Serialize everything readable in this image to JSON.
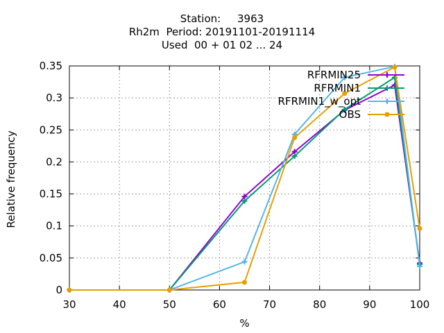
{
  "chart_data": {
    "type": "line",
    "title_lines": [
      "Station:     3963",
      "Rh2m  Period: 20191101-20191114",
      "Used  00 + 01 02 ... 24"
    ],
    "xlabel": "%",
    "ylabel": "Relative frequency",
    "xlim": [
      30,
      100
    ],
    "ylim": [
      0,
      0.35
    ],
    "xticks": [
      30,
      40,
      50,
      60,
      70,
      80,
      90,
      100
    ],
    "yticks": [
      0,
      0.05,
      0.1,
      0.15,
      0.2,
      0.25,
      0.3,
      0.35
    ],
    "ytick_labels": [
      "0",
      "0.05",
      "0.1",
      "0.15",
      "0.2",
      "0.25",
      "0.3",
      "0.35"
    ],
    "grid": true,
    "legend_position": "top-right",
    "series": [
      {
        "name": "RFRMIN25",
        "color": "#9400d3",
        "marker": "plus",
        "x": [
          30,
          50,
          65,
          75,
          85,
          95,
          100
        ],
        "y": [
          0,
          0,
          0.146,
          0.216,
          0.281,
          0.32,
          0.042
        ]
      },
      {
        "name": "RFRMIN1",
        "color": "#009e73",
        "marker": "plus",
        "x": [
          30,
          50,
          65,
          75,
          85,
          95,
          100
        ],
        "y": [
          0,
          0,
          0.139,
          0.209,
          0.282,
          0.332,
          0.04
        ]
      },
      {
        "name": "RFRMIN1_w_opt",
        "color": "#56b4e9",
        "marker": "plus",
        "x": [
          30,
          50,
          65,
          75,
          85,
          95,
          100
        ],
        "y": [
          0,
          0,
          0.044,
          0.243,
          0.332,
          0.349,
          0.037
        ]
      },
      {
        "name": "OBS",
        "color": "#e69f00",
        "marker": "circle",
        "x": [
          30,
          50,
          65,
          75,
          85,
          95,
          100
        ],
        "y": [
          0,
          0,
          0.012,
          0.238,
          0.307,
          0.348,
          0.096
        ]
      }
    ]
  }
}
